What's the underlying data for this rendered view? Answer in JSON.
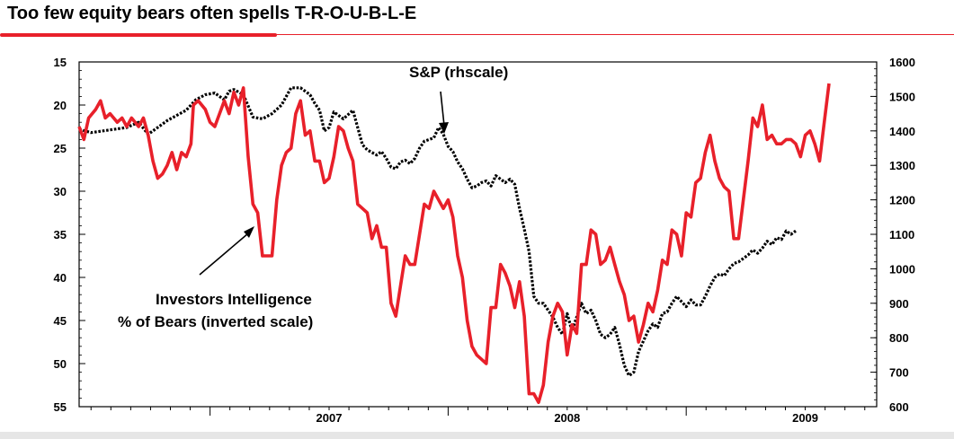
{
  "title": "Too few equity bears often spells T-R-O-U-B-L-E",
  "colors": {
    "bears": "#e8202a",
    "sp": "#000000",
    "accent": "#e8202a"
  },
  "chart_data": {
    "type": "line",
    "title": "Too few equity bears often spells T-R-O-U-B-L-E",
    "x_range": [
      2006.45,
      2009.8
    ],
    "x_ticks": [
      {
        "label": "2007",
        "x": 2007.0
      },
      {
        "label": "2008",
        "x": 2008.0
      },
      {
        "label": "2009",
        "x": 2009.0
      }
    ],
    "left_axis": {
      "label": "Investors Intelligence % of Bears (inverted scale)",
      "range": [
        55,
        15
      ],
      "inverted": true,
      "ticks": [
        "15",
        "20",
        "25",
        "30",
        "35",
        "40",
        "45",
        "50",
        "55"
      ]
    },
    "right_axis": {
      "label": "S&P (rhscale)",
      "range": [
        600,
        1600
      ],
      "ticks": [
        "1600",
        "1500",
        "1400",
        "1300",
        "1200",
        "1100",
        "1000",
        "900",
        "800",
        "700",
        "600"
      ]
    },
    "annotations": {
      "sp_label": "S&P (rhscale)",
      "bears_label_line1": "Investors Intelligence",
      "bears_label_line2": "% of Bears (inverted scale)"
    },
    "series": [
      {
        "name": "Investors Intelligence % of Bears",
        "axis": "left",
        "color": "#e8202a",
        "style": "solid",
        "points": [
          [
            2006.45,
            22.5
          ],
          [
            2006.47,
            24
          ],
          [
            2006.49,
            21.5
          ],
          [
            2006.52,
            20.5
          ],
          [
            2006.54,
            19.5
          ],
          [
            2006.56,
            21.5
          ],
          [
            2006.58,
            21
          ],
          [
            2006.61,
            22
          ],
          [
            2006.63,
            21.5
          ],
          [
            2006.65,
            22.5
          ],
          [
            2006.67,
            21.5
          ],
          [
            2006.7,
            22.5
          ],
          [
            2006.72,
            21.5
          ],
          [
            2006.74,
            23.5
          ],
          [
            2006.76,
            26.5
          ],
          [
            2006.78,
            28.5
          ],
          [
            2006.8,
            28
          ],
          [
            2006.82,
            27
          ],
          [
            2006.84,
            25.5
          ],
          [
            2006.86,
            27.5
          ],
          [
            2006.88,
            25.5
          ],
          [
            2006.9,
            26
          ],
          [
            2006.92,
            24.5
          ],
          [
            2006.93,
            20
          ],
          [
            2006.95,
            19.5
          ],
          [
            2006.98,
            20.5
          ],
          [
            2007.0,
            22
          ],
          [
            2007.02,
            22.5
          ],
          [
            2007.04,
            21
          ],
          [
            2007.06,
            19.5
          ],
          [
            2007.08,
            21
          ],
          [
            2007.1,
            18.5
          ],
          [
            2007.12,
            20
          ],
          [
            2007.14,
            18
          ],
          [
            2007.16,
            26
          ],
          [
            2007.18,
            31.5
          ],
          [
            2007.2,
            32.5
          ],
          [
            2007.22,
            37.5
          ],
          [
            2007.26,
            37.5
          ],
          [
            2007.28,
            31
          ],
          [
            2007.3,
            27
          ],
          [
            2007.32,
            25.5
          ],
          [
            2007.34,
            25
          ],
          [
            2007.36,
            21
          ],
          [
            2007.38,
            19.5
          ],
          [
            2007.4,
            23.5
          ],
          [
            2007.42,
            23
          ],
          [
            2007.44,
            26.5
          ],
          [
            2007.46,
            26.5
          ],
          [
            2007.48,
            29
          ],
          [
            2007.5,
            28.5
          ],
          [
            2007.52,
            26
          ],
          [
            2007.54,
            22.5
          ],
          [
            2007.56,
            23
          ],
          [
            2007.58,
            25
          ],
          [
            2007.6,
            26.5
          ],
          [
            2007.62,
            31.5
          ],
          [
            2007.64,
            32
          ],
          [
            2007.66,
            32.5
          ],
          [
            2007.68,
            35.5
          ],
          [
            2007.7,
            34
          ],
          [
            2007.72,
            36.5
          ],
          [
            2007.74,
            36.5
          ],
          [
            2007.76,
            43
          ],
          [
            2007.78,
            44.5
          ],
          [
            2007.8,
            41
          ],
          [
            2007.82,
            37.5
          ],
          [
            2007.84,
            38.5
          ],
          [
            2007.86,
            38.5
          ],
          [
            2007.88,
            35
          ],
          [
            2007.9,
            31.5
          ],
          [
            2007.92,
            32
          ],
          [
            2007.94,
            30
          ],
          [
            2007.96,
            31
          ],
          [
            2007.98,
            32
          ],
          [
            2008.0,
            31
          ],
          [
            2008.02,
            33
          ],
          [
            2008.04,
            37.5
          ],
          [
            2008.06,
            40
          ],
          [
            2008.08,
            45
          ],
          [
            2008.1,
            48
          ],
          [
            2008.12,
            49
          ],
          [
            2008.14,
            49.5
          ],
          [
            2008.16,
            50
          ],
          [
            2008.18,
            43.5
          ],
          [
            2008.2,
            43.5
          ],
          [
            2008.22,
            38.5
          ],
          [
            2008.24,
            39.5
          ],
          [
            2008.26,
            41
          ],
          [
            2008.28,
            43.5
          ],
          [
            2008.3,
            40.5
          ],
          [
            2008.32,
            44.5
          ],
          [
            2008.34,
            53.5
          ],
          [
            2008.36,
            53.5
          ],
          [
            2008.38,
            54.5
          ],
          [
            2008.4,
            52.5
          ],
          [
            2008.42,
            47.5
          ],
          [
            2008.44,
            44.5
          ],
          [
            2008.46,
            43
          ],
          [
            2008.48,
            44
          ],
          [
            2008.5,
            49
          ],
          [
            2008.52,
            45.5
          ],
          [
            2008.54,
            46.5
          ],
          [
            2008.56,
            38.5
          ],
          [
            2008.58,
            38.5
          ],
          [
            2008.6,
            34.5
          ],
          [
            2008.62,
            35
          ],
          [
            2008.64,
            38.5
          ],
          [
            2008.66,
            38
          ],
          [
            2008.68,
            36.5
          ],
          [
            2008.7,
            38.5
          ],
          [
            2008.72,
            40.5
          ],
          [
            2008.74,
            42
          ],
          [
            2008.76,
            45
          ],
          [
            2008.78,
            44.5
          ],
          [
            2008.8,
            47.5
          ],
          [
            2008.82,
            45.5
          ],
          [
            2008.84,
            43
          ],
          [
            2008.86,
            44
          ],
          [
            2008.88,
            41.5
          ],
          [
            2008.9,
            38
          ],
          [
            2008.92,
            38.5
          ],
          [
            2008.94,
            34.5
          ],
          [
            2008.96,
            35
          ],
          [
            2008.98,
            37.5
          ],
          [
            2009.0,
            32.5
          ],
          [
            2009.02,
            33
          ],
          [
            2009.04,
            29
          ],
          [
            2009.06,
            28.5
          ],
          [
            2009.08,
            25.5
          ],
          [
            2009.1,
            23.5
          ],
          [
            2009.12,
            26.5
          ],
          [
            2009.14,
            28.5
          ],
          [
            2009.16,
            29.5
          ],
          [
            2009.18,
            30
          ],
          [
            2009.2,
            35.5
          ],
          [
            2009.22,
            35.5
          ],
          [
            2009.24,
            31
          ],
          [
            2009.26,
            26.5
          ],
          [
            2009.28,
            21.5
          ],
          [
            2009.3,
            22.5
          ],
          [
            2009.32,
            20
          ],
          [
            2009.34,
            24
          ],
          [
            2009.36,
            23.5
          ],
          [
            2009.38,
            24.5
          ],
          [
            2009.4,
            24.5
          ],
          [
            2009.42,
            24
          ],
          [
            2009.44,
            24
          ],
          [
            2009.46,
            24.5
          ],
          [
            2009.48,
            26
          ],
          [
            2009.5,
            23.5
          ],
          [
            2009.52,
            23
          ],
          [
            2009.54,
            24.5
          ],
          [
            2009.56,
            26.5
          ],
          [
            2009.58,
            22
          ],
          [
            2009.6,
            17.5
          ]
        ]
      },
      {
        "name": "S&P",
        "axis": "right",
        "color": "#000000",
        "style": "dotted",
        "points": [
          [
            2006.45,
            1405
          ],
          [
            2006.5,
            1395
          ],
          [
            2006.55,
            1400
          ],
          [
            2006.6,
            1405
          ],
          [
            2006.65,
            1410
          ],
          [
            2006.7,
            1425
          ],
          [
            2006.74,
            1390
          ],
          [
            2006.78,
            1410
          ],
          [
            2006.82,
            1430
          ],
          [
            2006.86,
            1445
          ],
          [
            2006.9,
            1460
          ],
          [
            2006.94,
            1490
          ],
          [
            2006.98,
            1505
          ],
          [
            2007.02,
            1510
          ],
          [
            2007.06,
            1490
          ],
          [
            2007.08,
            1515
          ],
          [
            2007.1,
            1520
          ],
          [
            2007.14,
            1505
          ],
          [
            2007.18,
            1440
          ],
          [
            2007.22,
            1435
          ],
          [
            2007.26,
            1450
          ],
          [
            2007.3,
            1475
          ],
          [
            2007.34,
            1525
          ],
          [
            2007.38,
            1525
          ],
          [
            2007.42,
            1505
          ],
          [
            2007.44,
            1480
          ],
          [
            2007.46,
            1460
          ],
          [
            2007.48,
            1400
          ],
          [
            2007.5,
            1410
          ],
          [
            2007.52,
            1455
          ],
          [
            2007.56,
            1435
          ],
          [
            2007.6,
            1460
          ],
          [
            2007.62,
            1410
          ],
          [
            2007.64,
            1360
          ],
          [
            2007.66,
            1345
          ],
          [
            2007.7,
            1330
          ],
          [
            2007.72,
            1340
          ],
          [
            2007.74,
            1320
          ],
          [
            2007.76,
            1295
          ],
          [
            2007.78,
            1290
          ],
          [
            2007.8,
            1310
          ],
          [
            2007.82,
            1315
          ],
          [
            2007.84,
            1305
          ],
          [
            2007.86,
            1320
          ],
          [
            2007.88,
            1350
          ],
          [
            2007.9,
            1370
          ],
          [
            2007.94,
            1380
          ],
          [
            2007.96,
            1410
          ],
          [
            2007.98,
            1390
          ],
          [
            2008.0,
            1355
          ],
          [
            2008.02,
            1340
          ],
          [
            2008.04,
            1310
          ],
          [
            2008.06,
            1290
          ],
          [
            2008.08,
            1260
          ],
          [
            2008.1,
            1235
          ],
          [
            2008.12,
            1240
          ],
          [
            2008.14,
            1250
          ],
          [
            2008.16,
            1255
          ],
          [
            2008.18,
            1240
          ],
          [
            2008.2,
            1270
          ],
          [
            2008.22,
            1260
          ],
          [
            2008.24,
            1250
          ],
          [
            2008.26,
            1260
          ],
          [
            2008.28,
            1245
          ],
          [
            2008.3,
            1175
          ],
          [
            2008.32,
            1115
          ],
          [
            2008.34,
            1050
          ],
          [
            2008.36,
            920
          ],
          [
            2008.38,
            900
          ],
          [
            2008.4,
            900
          ],
          [
            2008.42,
            880
          ],
          [
            2008.44,
            860
          ],
          [
            2008.46,
            830
          ],
          [
            2008.48,
            810
          ],
          [
            2008.5,
            870
          ],
          [
            2008.52,
            820
          ],
          [
            2008.54,
            860
          ],
          [
            2008.56,
            900
          ],
          [
            2008.58,
            870
          ],
          [
            2008.6,
            880
          ],
          [
            2008.62,
            850
          ],
          [
            2008.64,
            810
          ],
          [
            2008.66,
            800
          ],
          [
            2008.68,
            810
          ],
          [
            2008.7,
            830
          ],
          [
            2008.72,
            780
          ],
          [
            2008.74,
            720
          ],
          [
            2008.76,
            690
          ],
          [
            2008.78,
            700
          ],
          [
            2008.8,
            760
          ],
          [
            2008.82,
            790
          ],
          [
            2008.84,
            820
          ],
          [
            2008.86,
            840
          ],
          [
            2008.88,
            830
          ],
          [
            2008.9,
            870
          ],
          [
            2008.92,
            875
          ],
          [
            2008.94,
            900
          ],
          [
            2008.96,
            920
          ],
          [
            2008.98,
            905
          ],
          [
            2009.0,
            890
          ],
          [
            2009.02,
            910
          ],
          [
            2009.04,
            895
          ],
          [
            2009.06,
            895
          ],
          [
            2009.08,
            920
          ],
          [
            2009.1,
            950
          ],
          [
            2009.12,
            975
          ],
          [
            2009.14,
            985
          ],
          [
            2009.16,
            980
          ],
          [
            2009.18,
            1000
          ],
          [
            2009.2,
            1015
          ],
          [
            2009.22,
            1020
          ],
          [
            2009.24,
            1030
          ],
          [
            2009.26,
            1040
          ],
          [
            2009.28,
            1055
          ],
          [
            2009.3,
            1045
          ],
          [
            2009.32,
            1060
          ],
          [
            2009.34,
            1080
          ],
          [
            2009.36,
            1070
          ],
          [
            2009.38,
            1090
          ],
          [
            2009.4,
            1085
          ],
          [
            2009.42,
            1110
          ],
          [
            2009.44,
            1100
          ],
          [
            2009.46,
            1110
          ]
        ]
      }
    ]
  }
}
